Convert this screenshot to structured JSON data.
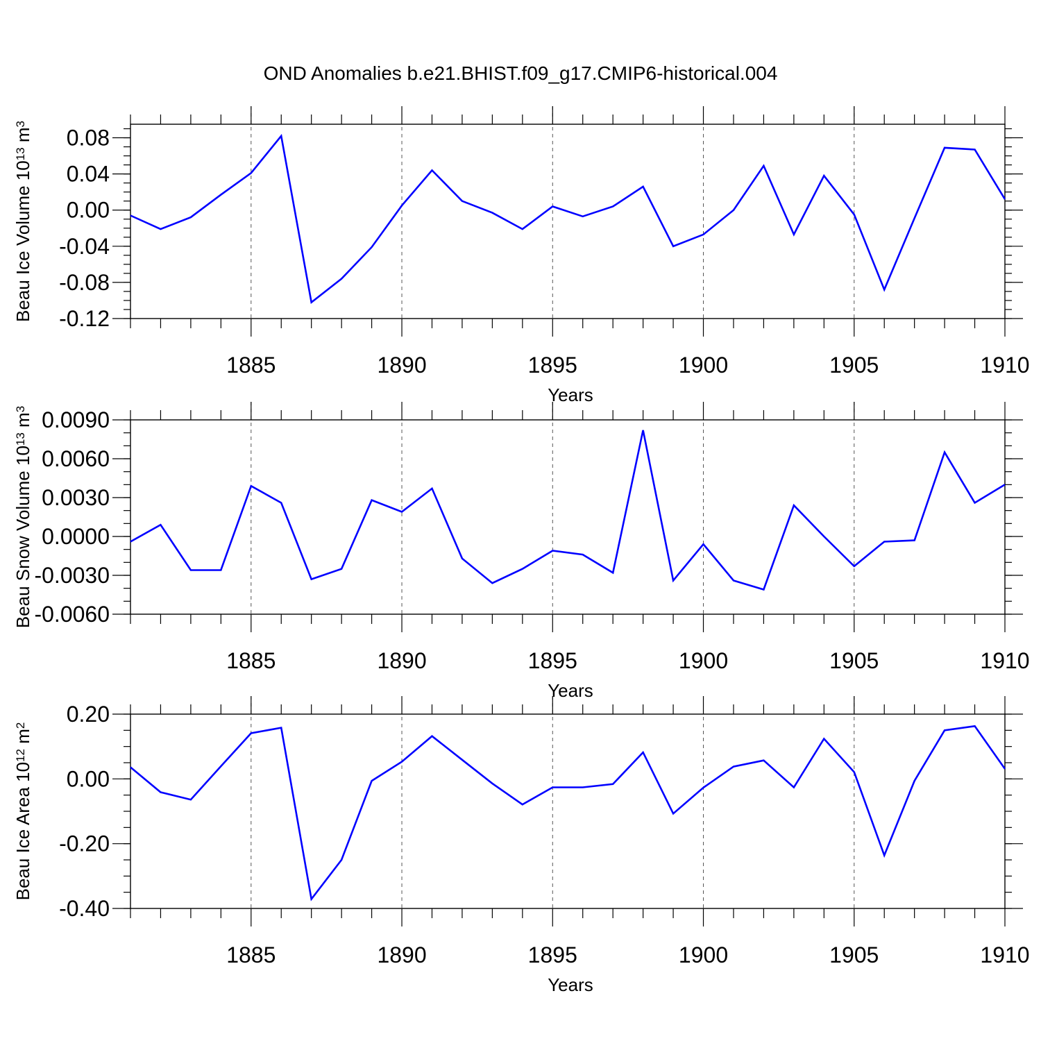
{
  "title": "OND Anomalies b.e21.BHIST.f09_g17.CMIP6-historical.004",
  "colors": {
    "line": "#0000ff",
    "axis": "#000000",
    "grid": "#555555"
  },
  "chart_data": [
    {
      "type": "line",
      "title": "OND Anomalies b.e21.BHIST.f09_g17.CMIP6-historical.004",
      "xlabel": "Years",
      "ylabel_prefix": "Beau Ice Volume 10",
      "ylabel_exponent": "13",
      "ylabel_suffix": " m",
      "ylabel_unit_exponent": "3",
      "xlim": [
        1881,
        1910
      ],
      "ylim": [
        -0.12,
        0.095
      ],
      "x_ticks": [
        1885,
        1890,
        1895,
        1900,
        1905,
        1910
      ],
      "y_ticks": [
        {
          "value": 0.08,
          "label": "0.08"
        },
        {
          "value": 0.04,
          "label": "0.04"
        },
        {
          "value": 0.0,
          "label": "0.00"
        },
        {
          "value": -0.04,
          "label": "-0.04"
        },
        {
          "value": -0.08,
          "label": "-0.08"
        },
        {
          "value": -0.12,
          "label": "-0.12"
        }
      ],
      "x": [
        1881,
        1882,
        1883,
        1884,
        1885,
        1886,
        1887,
        1888,
        1889,
        1890,
        1891,
        1892,
        1893,
        1894,
        1895,
        1896,
        1897,
        1898,
        1899,
        1900,
        1901,
        1902,
        1903,
        1904,
        1905,
        1906,
        1907,
        1908,
        1909,
        1910
      ],
      "series": [
        {
          "name": "Beau Ice Volume",
          "values": [
            -0.006,
            -0.021,
            -0.008,
            0.017,
            0.041,
            0.082,
            -0.102,
            -0.076,
            -0.041,
            0.005,
            0.044,
            0.01,
            -0.003,
            -0.021,
            0.004,
            -0.007,
            0.004,
            0.026,
            -0.04,
            -0.027,
            0.0,
            0.049,
            -0.027,
            0.038,
            -0.005,
            -0.088,
            -0.009,
            0.069,
            0.067,
            0.012
          ]
        }
      ]
    },
    {
      "type": "line",
      "xlabel": "Years",
      "ylabel_prefix": "Beau Snow Volume 10",
      "ylabel_exponent": "13",
      "ylabel_suffix": " m",
      "ylabel_unit_exponent": "3",
      "xlim": [
        1881,
        1910
      ],
      "ylim": [
        -0.006,
        0.009
      ],
      "x_ticks": [
        1885,
        1890,
        1895,
        1900,
        1905,
        1910
      ],
      "y_ticks": [
        {
          "value": 0.009,
          "label": "0.0090"
        },
        {
          "value": 0.006,
          "label": "0.0060"
        },
        {
          "value": 0.003,
          "label": "0.0030"
        },
        {
          "value": 0.0,
          "label": "0.0000"
        },
        {
          "value": -0.003,
          "label": "-0.0030"
        },
        {
          "value": -0.006,
          "label": "-0.0060"
        }
      ],
      "x": [
        1881,
        1882,
        1883,
        1884,
        1885,
        1886,
        1887,
        1888,
        1889,
        1890,
        1891,
        1892,
        1893,
        1894,
        1895,
        1896,
        1897,
        1898,
        1899,
        1900,
        1901,
        1902,
        1903,
        1904,
        1905,
        1906,
        1907,
        1908,
        1909,
        1910
      ],
      "series": [
        {
          "name": "Beau Snow Volume",
          "values": [
            -0.0004,
            0.0009,
            -0.0026,
            -0.0026,
            0.0039,
            0.0026,
            -0.0033,
            -0.0025,
            0.0028,
            0.0019,
            0.0037,
            -0.0017,
            -0.0036,
            -0.0025,
            -0.0011,
            -0.0014,
            -0.0028,
            0.0082,
            -0.0034,
            -0.0006,
            -0.0034,
            -0.0041,
            0.0024,
            0.0,
            -0.0023,
            -0.0004,
            -0.0003,
            0.0065,
            0.0026,
            0.004
          ]
        }
      ]
    },
    {
      "type": "line",
      "xlabel": "Years",
      "ylabel_prefix": "Beau Ice Area 10",
      "ylabel_exponent": "12",
      "ylabel_suffix": " m",
      "ylabel_unit_exponent": "2",
      "xlim": [
        1881,
        1910
      ],
      "ylim": [
        -0.4,
        0.2
      ],
      "x_ticks": [
        1885,
        1890,
        1895,
        1900,
        1905,
        1910
      ],
      "y_ticks": [
        {
          "value": 0.2,
          "label": "0.20"
        },
        {
          "value": 0.0,
          "label": "0.00"
        },
        {
          "value": -0.2,
          "label": "-0.20"
        },
        {
          "value": -0.4,
          "label": "-0.40"
        }
      ],
      "x": [
        1881,
        1882,
        1883,
        1884,
        1885,
        1886,
        1887,
        1888,
        1889,
        1890,
        1891,
        1892,
        1893,
        1894,
        1895,
        1896,
        1897,
        1898,
        1899,
        1900,
        1901,
        1902,
        1903,
        1904,
        1905,
        1906,
        1907,
        1908,
        1909,
        1910
      ],
      "series": [
        {
          "name": "Beau Ice Area",
          "values": [
            0.036,
            -0.041,
            -0.064,
            0.039,
            0.141,
            0.158,
            -0.371,
            -0.25,
            -0.006,
            0.053,
            0.132,
            0.059,
            -0.014,
            -0.079,
            -0.026,
            -0.026,
            -0.016,
            0.082,
            -0.107,
            -0.027,
            0.038,
            0.057,
            -0.026,
            0.124,
            0.021,
            -0.236,
            -0.006,
            0.15,
            0.163,
            0.031
          ]
        }
      ]
    }
  ]
}
